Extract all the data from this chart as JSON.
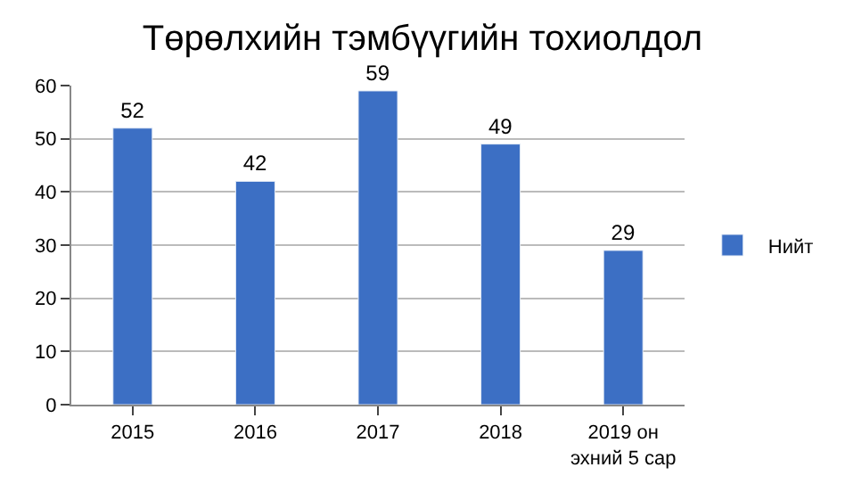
{
  "chart_data": {
    "type": "bar",
    "title": "Төрөлхийн тэмбүүгийн тохиолдол",
    "categories": [
      "2015",
      "2016",
      "2017",
      "2018",
      "2019 он\nэхний 5 сар"
    ],
    "series": [
      {
        "name": "Нийт",
        "color": "#3c6fc4",
        "values": [
          52,
          42,
          59,
          49,
          29
        ]
      }
    ],
    "ylim": [
      0,
      60
    ],
    "yticks": [
      0,
      10,
      20,
      30,
      40,
      50,
      60
    ],
    "grid": "y",
    "legend": "right",
    "data_labels": true
  }
}
